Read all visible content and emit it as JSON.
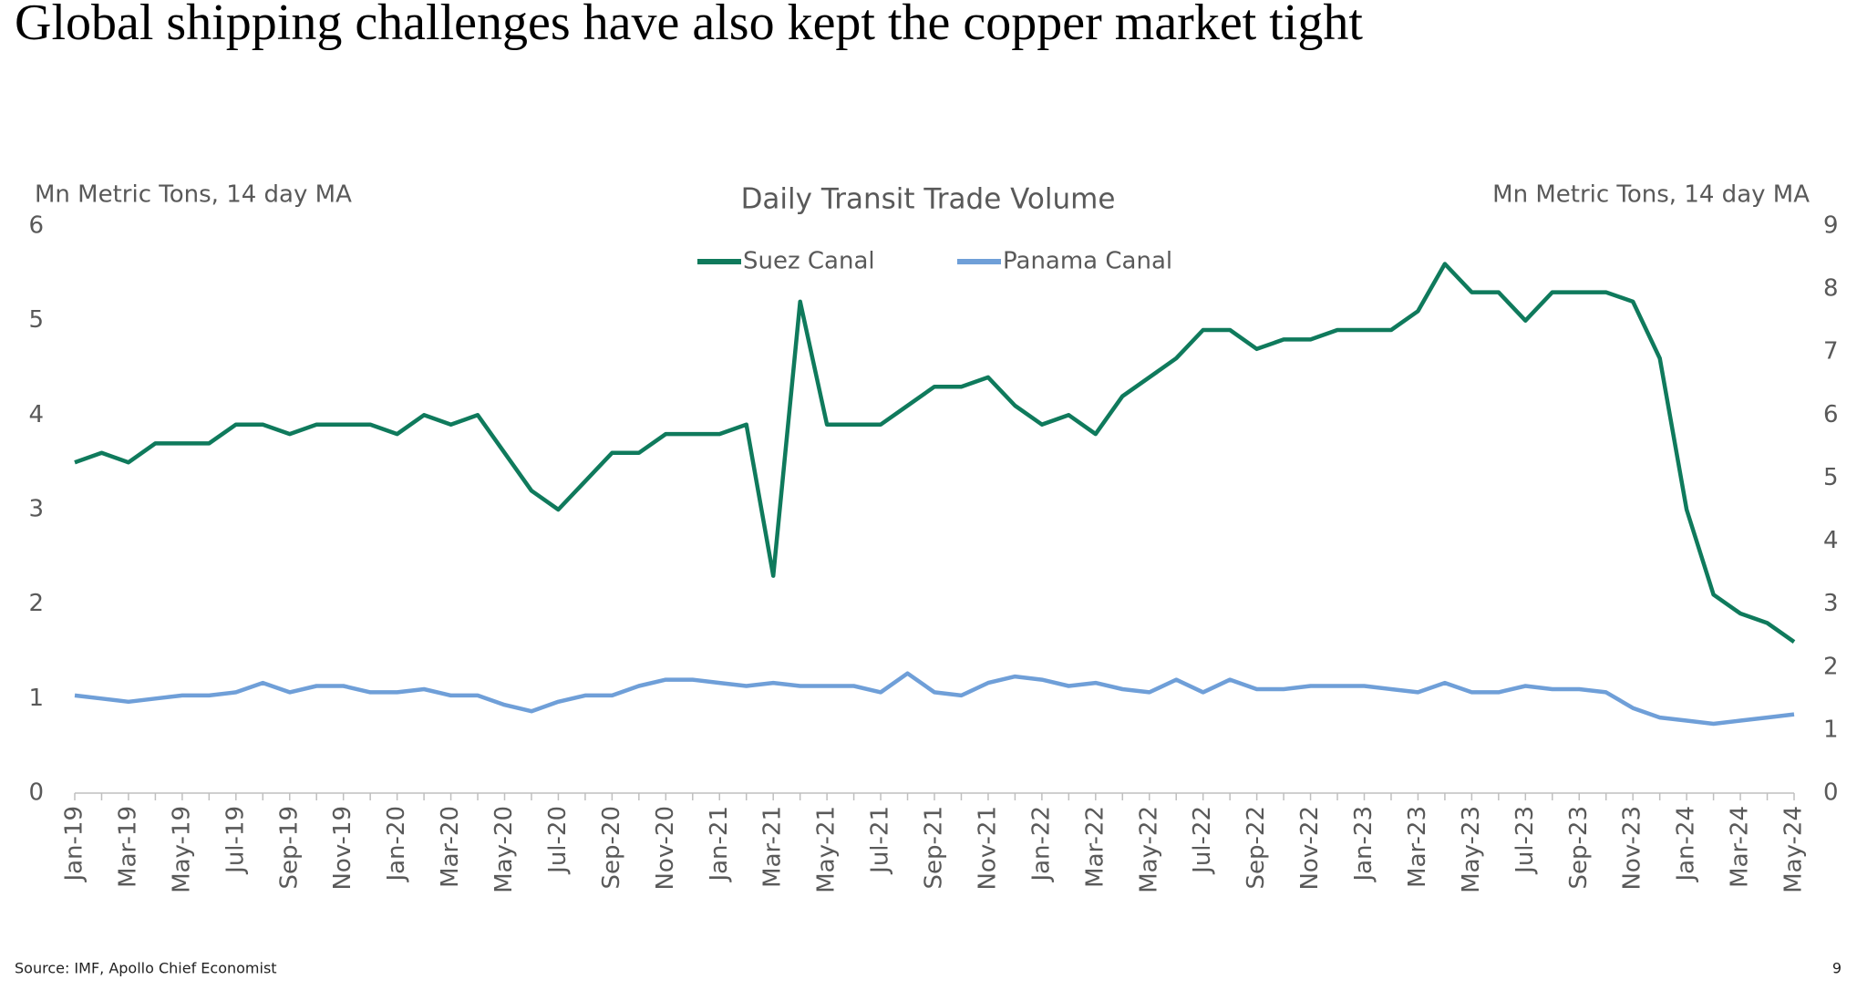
{
  "title": "Global shipping challenges have also kept the copper market tight",
  "source": "Source: IMF, Apollo Chief Economist",
  "page_number": 9,
  "chart_data": {
    "type": "line",
    "title": "Daily Transit Trade Volume",
    "y_label": "Mn Metric Tons, 14 day MA",
    "y2_label": "Mn Metric Tons, 14 day MA",
    "categories": [
      "Jan-19",
      null,
      "Mar-19",
      null,
      "May-19",
      null,
      "Jul-19",
      null,
      "Sep-19",
      null,
      "Nov-19",
      null,
      "Jan-20",
      null,
      "Mar-20",
      null,
      "May-20",
      null,
      "Jul-20",
      null,
      "Sep-20",
      null,
      "Nov-20",
      null,
      "Jan-21",
      null,
      "Mar-21",
      null,
      "May-21",
      null,
      "Jul-21",
      null,
      "Sep-21",
      null,
      "Nov-21",
      null,
      "Jan-22",
      null,
      "Mar-22",
      null,
      "May-22",
      null,
      "Jul-22",
      null,
      "Sep-22",
      null,
      "Nov-22",
      null,
      "Jan-23",
      null,
      "Mar-23",
      null,
      "May-23",
      null,
      "Jul-23",
      null,
      "Sep-23",
      null,
      "Nov-23",
      null,
      "Jan-24",
      null,
      "Mar-24",
      null,
      "May-24"
    ],
    "series": [
      {
        "name": "Suez Canal",
        "color": "#0f7a5c",
        "axis": "y",
        "values": [
          3.5,
          3.6,
          3.5,
          3.7,
          3.7,
          3.7,
          3.9,
          3.9,
          3.8,
          3.9,
          3.9,
          3.9,
          3.8,
          4.0,
          3.9,
          4.0,
          3.6,
          3.2,
          3.0,
          3.3,
          3.6,
          3.6,
          3.8,
          3.8,
          3.8,
          3.9,
          2.3,
          5.2,
          3.9,
          3.9,
          3.9,
          4.1,
          4.3,
          4.3,
          4.4,
          4.1,
          3.9,
          4.0,
          3.8,
          4.2,
          4.4,
          4.6,
          4.9,
          4.9,
          4.7,
          4.8,
          4.8,
          4.9,
          4.9,
          4.9,
          5.1,
          5.6,
          5.3,
          5.3,
          5.0,
          5.3,
          5.3,
          5.3,
          5.2,
          4.6,
          3.0,
          2.1,
          1.9,
          1.8,
          1.6
        ]
      },
      {
        "name": "Panama Canal",
        "color": "#6f9fd8",
        "axis": "y2",
        "values": [
          1.55,
          1.5,
          1.45,
          1.5,
          1.55,
          1.55,
          1.6,
          1.75,
          1.6,
          1.7,
          1.7,
          1.6,
          1.6,
          1.65,
          1.55,
          1.55,
          1.4,
          1.3,
          1.45,
          1.55,
          1.55,
          1.7,
          1.8,
          1.8,
          1.75,
          1.7,
          1.75,
          1.7,
          1.7,
          1.7,
          1.6,
          1.9,
          1.6,
          1.55,
          1.75,
          1.85,
          1.8,
          1.7,
          1.75,
          1.65,
          1.6,
          1.8,
          1.6,
          1.8,
          1.65,
          1.65,
          1.7,
          1.7,
          1.7,
          1.65,
          1.6,
          1.75,
          1.6,
          1.6,
          1.7,
          1.65,
          1.65,
          1.6,
          1.35,
          1.2,
          1.15,
          1.1,
          1.15,
          1.2,
          1.25
        ]
      }
    ],
    "ylim": [
      0,
      6
    ],
    "yticks": [
      0,
      1,
      2,
      3,
      4,
      5,
      6
    ],
    "y2lim": [
      0,
      9
    ],
    "y2ticks": [
      0,
      1,
      2,
      3,
      4,
      5,
      6,
      7,
      8,
      9
    ],
    "grid": false
  }
}
